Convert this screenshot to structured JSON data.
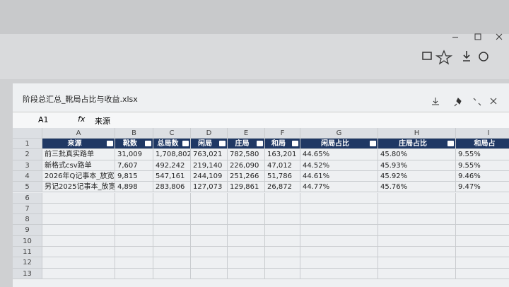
{
  "window": {
    "title": "阶段总汇总_靴局占比与收益.xlsx"
  },
  "formula_bar": {
    "cell": "A1",
    "fx": "fx",
    "content": "来源"
  },
  "sheet": {
    "columns": [
      "A",
      "B",
      "C",
      "D",
      "E",
      "F",
      "G",
      "H",
      "I"
    ],
    "row_numbers": [
      "1",
      "2",
      "3",
      "4",
      "5",
      "6",
      "7",
      "8",
      "9",
      "10",
      "11",
      "12",
      "13"
    ],
    "header": [
      "来源",
      "靴数",
      "总局数",
      "闲局",
      "庄局",
      "和局",
      "闲局占比",
      "庄局占比",
      "和局占"
    ],
    "rows": [
      [
        "前三批真实路单",
        "31,009",
        "1,708,802",
        "763,021",
        "782,580",
        "163,201",
        "44.65%",
        "45.80%",
        "9.55%"
      ],
      [
        "新格式csv路单",
        "7,607",
        "492,242",
        "219,140",
        "226,090",
        "47,012",
        "44.52%",
        "45.93%",
        "9.55%"
      ],
      [
        "2026年Q记事本_放宽",
        "9,815",
        "547,161",
        "244,109",
        "251,266",
        "51,786",
        "44.61%",
        "45.92%",
        "9.46%"
      ],
      [
        "另记2025记事本_放宽",
        "4,898",
        "283,806",
        "127,073",
        "129,861",
        "26,872",
        "44.77%",
        "45.76%",
        "9.47%"
      ]
    ]
  }
}
